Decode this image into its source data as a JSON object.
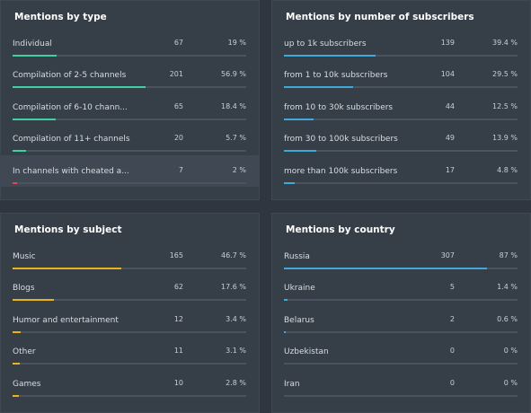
{
  "panels": [
    {
      "id": "p-type",
      "title": "Mentions by type",
      "color": "#3fd1a3",
      "rows": [
        {
          "label": "Individual",
          "count": "67",
          "pct": "19 %",
          "fraction": 0.19
        },
        {
          "label": "Compilation of 2-5 channels",
          "count": "201",
          "pct": "56.9 %",
          "fraction": 0.569
        },
        {
          "label": "Compilation of 6-10 chann...",
          "count": "65",
          "pct": "18.4 %",
          "fraction": 0.184
        },
        {
          "label": "Compilation of 11+ channels",
          "count": "20",
          "pct": "5.7 %",
          "fraction": 0.057
        },
        {
          "label": "In channels with cheated a...",
          "count": "7",
          "pct": "2 %",
          "fraction": 0.02,
          "color": "#e0465a",
          "highlight": true
        }
      ]
    },
    {
      "id": "p-subs",
      "title": "Mentions by number of subscribers",
      "color": "#3fa9dc",
      "rows": [
        {
          "label": "up to 1k subscribers",
          "count": "139",
          "pct": "39.4 %",
          "fraction": 0.394
        },
        {
          "label": "from 1 to 10k subscribers",
          "count": "104",
          "pct": "29.5 %",
          "fraction": 0.295
        },
        {
          "label": "from 10 to 30k subscribers",
          "count": "44",
          "pct": "12.5 %",
          "fraction": 0.125
        },
        {
          "label": "from 30 to 100k subscribers",
          "count": "49",
          "pct": "13.9 %",
          "fraction": 0.139
        },
        {
          "label": "more than 100k subscribers",
          "count": "17",
          "pct": "4.8 %",
          "fraction": 0.048
        }
      ]
    },
    {
      "id": "p-subject",
      "title": "Mentions by subject",
      "color": "#e8b41a",
      "rows": [
        {
          "label": "Music",
          "count": "165",
          "pct": "46.7 %",
          "fraction": 0.467
        },
        {
          "label": "Blogs",
          "count": "62",
          "pct": "17.6 %",
          "fraction": 0.176
        },
        {
          "label": "Humor and entertainment",
          "count": "12",
          "pct": "3.4 %",
          "fraction": 0.034
        },
        {
          "label": "Other",
          "count": "11",
          "pct": "3.1 %",
          "fraction": 0.031
        },
        {
          "label": "Games",
          "count": "10",
          "pct": "2.8 %",
          "fraction": 0.028
        }
      ]
    },
    {
      "id": "p-country",
      "title": "Mentions by country",
      "color": "#3fa9dc",
      "rows": [
        {
          "label": "Russia",
          "count": "307",
          "pct": "87 %",
          "fraction": 0.87
        },
        {
          "label": "Ukraine",
          "count": "5",
          "pct": "1.4 %",
          "fraction": 0.014
        },
        {
          "label": "Belarus",
          "count": "2",
          "pct": "0.6 %",
          "fraction": 0.006
        },
        {
          "label": "Uzbekistan",
          "count": "0",
          "pct": "0 %",
          "fraction": 0
        },
        {
          "label": "Iran",
          "count": "0",
          "pct": "0 %",
          "fraction": 0
        }
      ]
    }
  ]
}
